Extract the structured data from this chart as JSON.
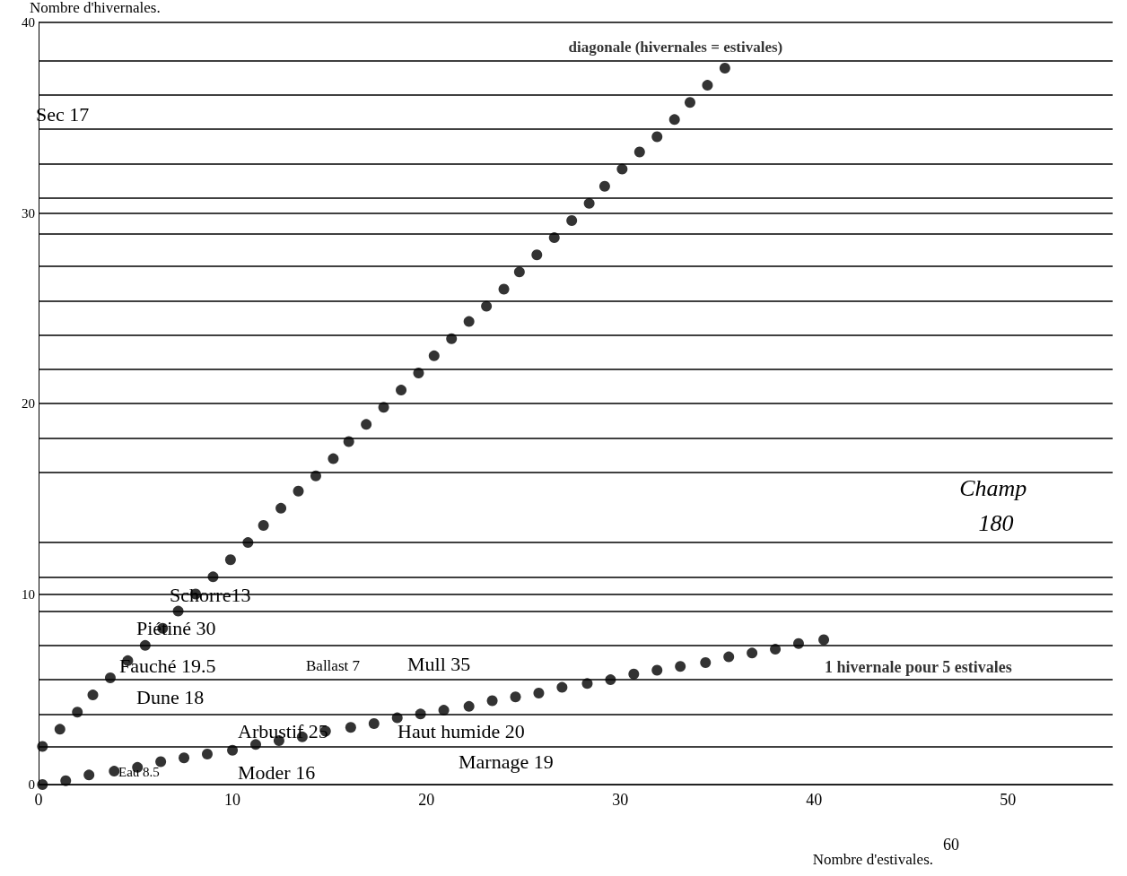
{
  "chart_data": {
    "type": "scatter",
    "xlabel": "Nombre d'estivales.",
    "ylabel": "Nombre d'hivernales.",
    "xlim": [
      0,
      55.4
    ],
    "ylim": [
      0,
      40
    ],
    "xticks": [
      0,
      10,
      20,
      30,
      40,
      50
    ],
    "yticks": [
      0,
      {
        "value": 2,
        "label": null
      },
      {
        "value": 3.7,
        "label": null
      },
      {
        "value": 5.5,
        "label": null
      },
      {
        "value": 7.3,
        "label": null
      },
      {
        "value": 9.1,
        "label": null
      },
      10,
      {
        "value": 10.9,
        "label": null
      },
      {
        "value": 12.7,
        "label": null
      },
      {
        "value": 16.4,
        "label": null
      },
      {
        "value": 18.2,
        "label": null
      },
      20,
      {
        "value": 21.8,
        "label": null
      },
      {
        "value": 23.6,
        "label": null
      },
      {
        "value": 25.4,
        "label": null
      },
      {
        "value": 27.2,
        "label": null
      },
      {
        "value": 28.9,
        "label": null
      },
      30,
      {
        "value": 30.8,
        "label": null
      },
      {
        "value": 32.6,
        "label": null
      },
      {
        "value": 34.4,
        "label": null
      },
      {
        "value": 36.2,
        "label": null
      },
      {
        "value": 38,
        "label": null
      },
      40
    ],
    "grid": "y",
    "marker": "circle",
    "legend": false,
    "series": [
      {
        "name": "diagonale (hivernales = estivales)",
        "color": "#000000",
        "x": [
          0.2,
          1.1,
          2.0,
          2.8,
          3.7,
          4.6,
          5.5,
          6.4,
          7.2,
          8.1,
          9.0,
          9.9,
          10.8,
          11.6,
          12.5,
          13.4,
          14.3,
          15.2,
          16.0,
          16.9,
          17.8,
          18.7,
          19.6,
          20.4,
          21.3,
          22.2,
          23.1,
          24.0,
          24.8,
          25.7,
          26.6,
          27.5,
          28.4,
          29.2,
          30.1,
          31.0,
          31.9,
          32.8,
          33.6,
          34.5,
          35.4
        ],
        "values": [
          2.0,
          2.9,
          3.8,
          4.7,
          5.6,
          6.5,
          7.3,
          8.2,
          9.1,
          10.0,
          10.9,
          11.8,
          12.7,
          13.6,
          14.5,
          15.4,
          16.2,
          17.1,
          18.0,
          18.9,
          19.8,
          20.7,
          21.6,
          22.5,
          23.4,
          24.3,
          25.1,
          26.0,
          26.9,
          27.8,
          28.7,
          29.6,
          30.5,
          31.4,
          32.3,
          33.2,
          34.0,
          34.9,
          35.8,
          36.7,
          37.6
        ]
      },
      {
        "name": "1 hivernale pour 5 estivales",
        "color": "#000000",
        "x": [
          0.2,
          1.4,
          2.6,
          3.9,
          5.1,
          6.3,
          7.5,
          8.7,
          10.0,
          11.2,
          12.4,
          13.6,
          14.8,
          16.1,
          17.3,
          18.5,
          19.7,
          20.9,
          22.2,
          23.4,
          24.6,
          25.8,
          27.0,
          28.3,
          29.5,
          30.7,
          31.9,
          33.1,
          34.4,
          35.6,
          36.8,
          38.0,
          39.2,
          40.5
        ],
        "values": [
          0,
          0.2,
          0.5,
          0.7,
          0.9,
          1.2,
          1.4,
          1.6,
          1.8,
          2.1,
          2.3,
          2.5,
          2.8,
          3.0,
          3.2,
          3.5,
          3.7,
          3.9,
          4.1,
          4.4,
          4.6,
          4.8,
          5.1,
          5.3,
          5.5,
          5.8,
          6.0,
          6.2,
          6.4,
          6.7,
          6.9,
          7.1,
          7.4,
          7.6
        ]
      }
    ],
    "annotations": [
      "Sec 17",
      "Schorre13",
      "Piétiné 30",
      "Fauché 19.5",
      "Ballast 7",
      "Mull 35",
      "Dune 18",
      "Arbustif 25",
      "Haut humide 20",
      "Marnage 19",
      "Eau 8.5",
      "Moder 16",
      "Champ 180",
      "60"
    ]
  }
}
